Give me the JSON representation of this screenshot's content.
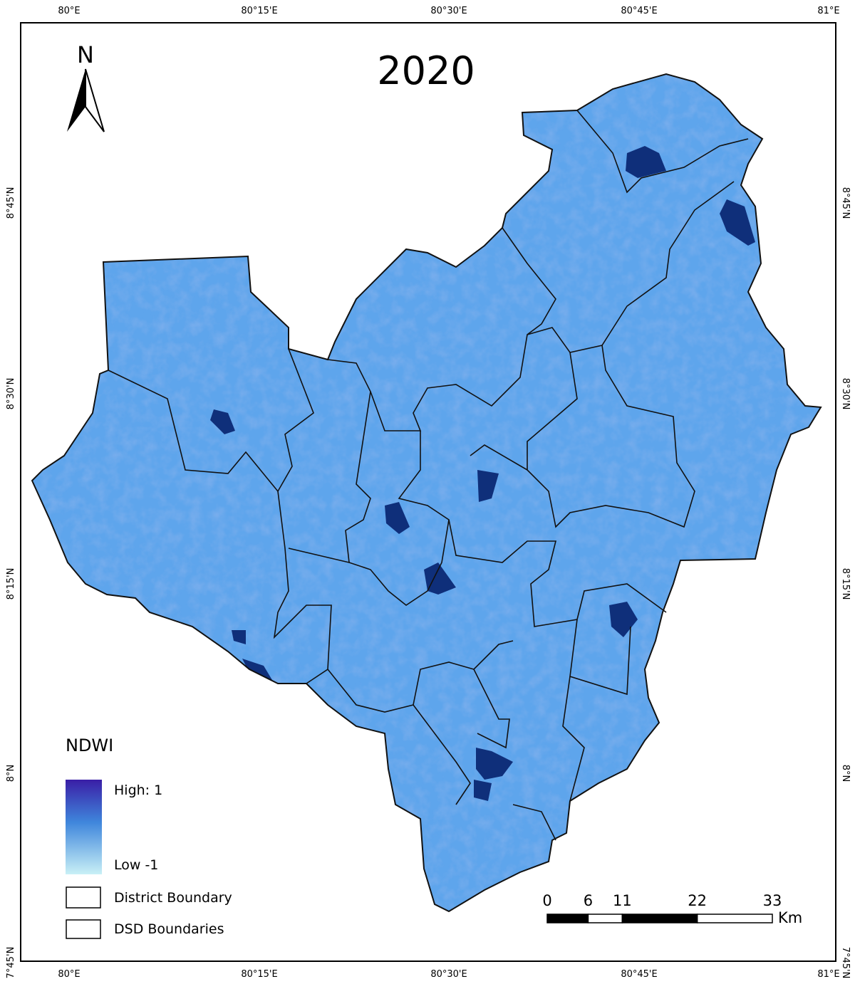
{
  "title": "2020",
  "north_arrow": "N",
  "graticule": {
    "longitudes": [
      "80°E",
      "80°15'E",
      "80°30'E",
      "80°45'E",
      "81°E"
    ],
    "latitudes": [
      "8°45'N",
      "8°30'N",
      "8°15'N",
      "8°N",
      "7°45'N"
    ]
  },
  "legend": {
    "title": "NDWI",
    "high": "High: 1",
    "low": "Low -1",
    "items": [
      "District Boundary",
      "DSD Boundaries"
    ]
  },
  "scale_bar": {
    "ticks": [
      0,
      6,
      11,
      22,
      33
    ],
    "unit": "Km"
  }
}
